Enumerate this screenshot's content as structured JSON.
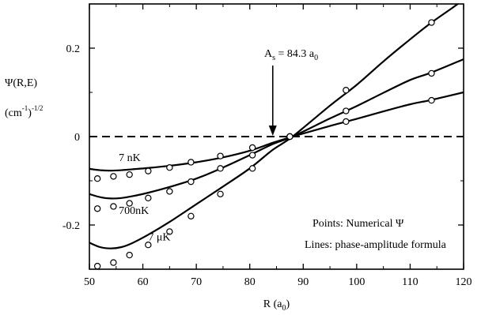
{
  "chart_data": {
    "type": "line",
    "xlim": [
      50,
      120
    ],
    "ylim": [
      -0.3,
      0.3
    ],
    "x_ticks": [
      50,
      60,
      70,
      80,
      90,
      100,
      110,
      120
    ],
    "y_ticks": [
      -0.2,
      0,
      0.2
    ],
    "y_tick_labels": [
      "-0.2",
      "0",
      "0.2"
    ],
    "xlabel": "R (a",
    "xlabel_sub": "0",
    "xlabel_end": ")",
    "ylabel_line1": "Ψ(R,E)",
    "ylabel_line2_base": "(cm",
    "ylabel_line2_sup": "-1",
    "ylabel_line2_end": ")",
    "ylabel_line2_power": "-1/2",
    "zero_line": {
      "y": 0,
      "style": "dashed"
    },
    "annotation": {
      "prefix": "A",
      "sub_s": "s",
      "mid": " = 84.3 a",
      "sub_0": "0",
      "x": 84.3,
      "y": 0
    },
    "legend_text": [
      "Points: Numerical Ψ",
      "Lines: phase-amplitude formula"
    ],
    "series": [
      {
        "name": "7 nK",
        "line": [
          [
            50,
            -0.073
          ],
          [
            52,
            -0.076
          ],
          [
            54,
            -0.077
          ],
          [
            56,
            -0.076
          ],
          [
            58,
            -0.074
          ],
          [
            61,
            -0.071
          ],
          [
            65,
            -0.066
          ],
          [
            70,
            -0.058
          ],
          [
            75,
            -0.047
          ],
          [
            80,
            -0.032
          ],
          [
            84.3,
            -0.014
          ],
          [
            88,
            0
          ],
          [
            95,
            0.024
          ],
          [
            100,
            0.04
          ],
          [
            105,
            0.057
          ],
          [
            110,
            0.073
          ],
          [
            114,
            0.083
          ],
          [
            120,
            0.1
          ]
        ],
        "points": [
          [
            51.5,
            -0.095
          ],
          [
            54.5,
            -0.09
          ],
          [
            57.5,
            -0.086
          ],
          [
            61,
            -0.078
          ],
          [
            65,
            -0.07
          ],
          [
            69,
            -0.058
          ],
          [
            74.5,
            -0.044
          ],
          [
            80.5,
            -0.025
          ],
          [
            87.5,
            0.0
          ],
          [
            98,
            0.034
          ],
          [
            114,
            0.082
          ]
        ]
      },
      {
        "name": "700nK",
        "line": [
          [
            50,
            -0.13
          ],
          [
            52,
            -0.137
          ],
          [
            54,
            -0.14
          ],
          [
            56,
            -0.139
          ],
          [
            58,
            -0.135
          ],
          [
            61,
            -0.127
          ],
          [
            65,
            -0.114
          ],
          [
            70,
            -0.095
          ],
          [
            75,
            -0.07
          ],
          [
            80,
            -0.042
          ],
          [
            84.3,
            -0.017
          ],
          [
            88,
            0
          ],
          [
            95,
            0.041
          ],
          [
            100,
            0.069
          ],
          [
            105,
            0.099
          ],
          [
            110,
            0.128
          ],
          [
            114,
            0.145
          ],
          [
            120,
            0.175
          ]
        ],
        "points": [
          [
            51.5,
            -0.163
          ],
          [
            54.5,
            -0.158
          ],
          [
            57.5,
            -0.151
          ],
          [
            61,
            -0.139
          ],
          [
            65,
            -0.124
          ],
          [
            69,
            -0.102
          ],
          [
            74.5,
            -0.072
          ],
          [
            80.5,
            -0.042
          ],
          [
            87.5,
            0.0
          ],
          [
            98,
            0.058
          ],
          [
            114,
            0.143
          ]
        ]
      },
      {
        "name": "7 μK",
        "line": [
          [
            50,
            -0.24
          ],
          [
            52,
            -0.25
          ],
          [
            54,
            -0.253
          ],
          [
            56,
            -0.25
          ],
          [
            58,
            -0.241
          ],
          [
            61,
            -0.222
          ],
          [
            65,
            -0.193
          ],
          [
            70,
            -0.153
          ],
          [
            75,
            -0.113
          ],
          [
            80,
            -0.072
          ],
          [
            84.3,
            -0.03
          ],
          [
            88,
            0
          ],
          [
            95,
            0.07
          ],
          [
            100,
            0.117
          ],
          [
            105,
            0.17
          ],
          [
            110,
            0.22
          ],
          [
            114,
            0.258
          ],
          [
            118,
            0.292
          ],
          [
            120,
            0.31
          ]
        ],
        "points": [
          [
            51.5,
            -0.293
          ],
          [
            54.5,
            -0.285
          ],
          [
            57.5,
            -0.268
          ],
          [
            61,
            -0.245
          ],
          [
            65,
            -0.215
          ],
          [
            69,
            -0.18
          ],
          [
            74.5,
            -0.13
          ],
          [
            80.5,
            -0.072
          ],
          [
            87.5,
            0.0
          ],
          [
            98,
            0.105
          ],
          [
            114,
            0.258
          ]
        ]
      }
    ],
    "series_labels": [
      "7 nK",
      "700nK",
      "7 μK"
    ]
  }
}
